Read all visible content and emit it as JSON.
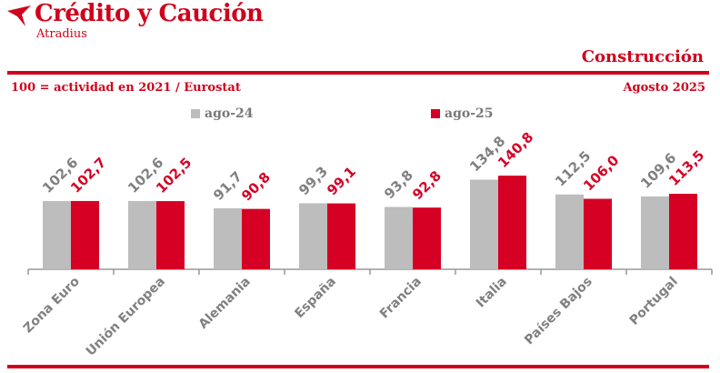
{
  "header": {
    "brand": "Crédito y Caución",
    "brand_sub": "Atradius",
    "title": "Construcción",
    "note": "100 = actividad en 2021 / Eurostat",
    "date": "Agosto 2025"
  },
  "colors": {
    "accent": "#d0021b",
    "ago24": "#bdbdbd",
    "ago25": "#d50024",
    "label": "#808080"
  },
  "chart_data": {
    "type": "bar",
    "categories": [
      "Zona Euro",
      "Unión Europea",
      "Alemania",
      "España",
      "Francia",
      "Italia",
      "Países Bajos",
      "Portugal"
    ],
    "series": [
      {
        "name": "ago-24",
        "values": [
          102.6,
          102.6,
          91.7,
          99.3,
          93.8,
          134.8,
          112.5,
          109.6
        ],
        "labels": [
          "102,6",
          "102,6",
          "91,7",
          "99,3",
          "93,8",
          "134,8",
          "112,5",
          "109,6"
        ]
      },
      {
        "name": "ago-25",
        "values": [
          102.7,
          102.5,
          90.8,
          99.1,
          92.8,
          140.8,
          106.0,
          113.5
        ],
        "labels": [
          "102,7",
          "102,5",
          "90,8",
          "99,1",
          "92,8",
          "140,8",
          "106,0",
          "113,5"
        ]
      }
    ],
    "ylim": [
      0,
      145
    ],
    "grid": false,
    "legend": "top"
  }
}
